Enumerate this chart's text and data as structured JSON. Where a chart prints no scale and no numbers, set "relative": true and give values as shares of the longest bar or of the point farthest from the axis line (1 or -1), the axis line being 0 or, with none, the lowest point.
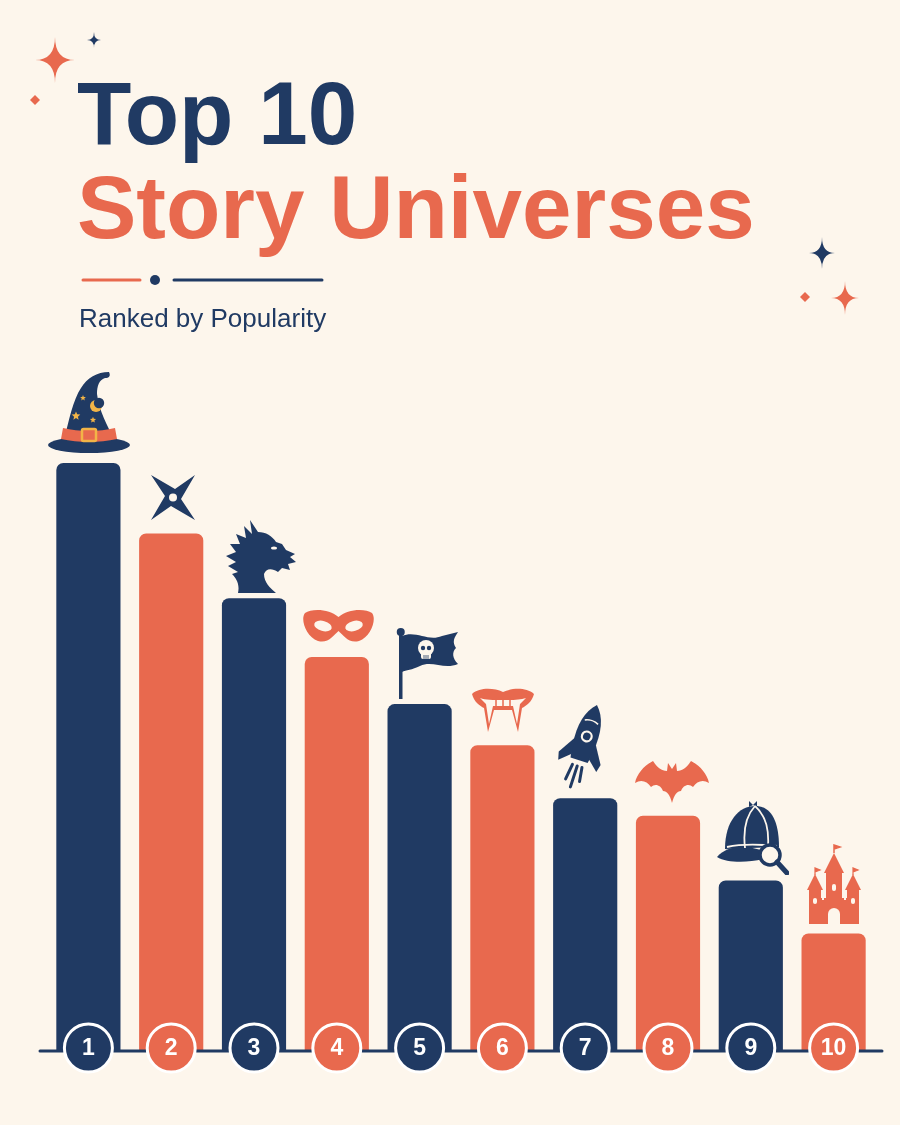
{
  "chart_data": {
    "type": "bar",
    "title": "Top 10\nStory Universes",
    "subtitle": "Ranked by Popularity",
    "categories": [
      "1",
      "2",
      "3",
      "4",
      "5",
      "6",
      "7",
      "8",
      "9",
      "10"
    ],
    "values": [
      1,
      0.88,
      0.77,
      0.67,
      0.59,
      0.52,
      0.43,
      0.4,
      0.29,
      0.2
    ],
    "colors": [
      "#203a63",
      "#e8694e",
      "#203a63",
      "#e8694e",
      "#203a63",
      "#e8694e",
      "#203a63",
      "#e8694e",
      "#203a63",
      "#e8694e"
    ],
    "relative": true
  }
}
